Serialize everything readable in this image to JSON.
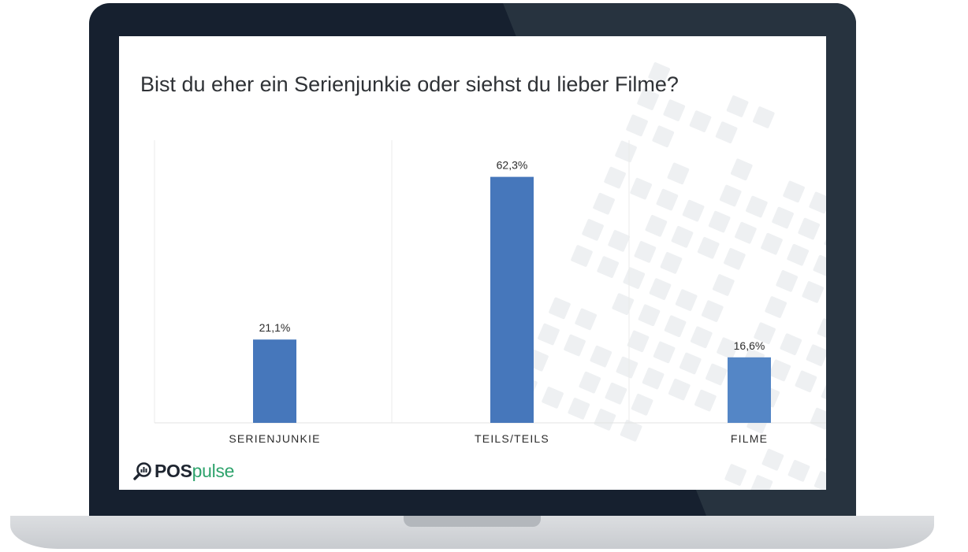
{
  "chart_data": {
    "type": "bar",
    "title": "Bist du eher ein Serienjunkie oder siehst du lieber Filme?",
    "categories": [
      "SERIENJUNKIE",
      "TEILS/TEILS",
      "FILME"
    ],
    "values": [
      21.1,
      62.3,
      16.6
    ],
    "value_labels": [
      "21,1%",
      "62,3%",
      "16,6%"
    ],
    "ylim": [
      0,
      70
    ],
    "grid": "vertical separators",
    "legend": "none",
    "colors": {
      "bar": "#4677bb",
      "bar_last": "#5486c6"
    }
  },
  "brand": {
    "pos": "POS",
    "pulse": "pulse",
    "icon": "magnifier-chart-icon"
  },
  "colors": {
    "bezel": "#16202f",
    "base": "#d6d8db",
    "brand_green": "#2ea36c",
    "pattern": "#eef0f2"
  }
}
